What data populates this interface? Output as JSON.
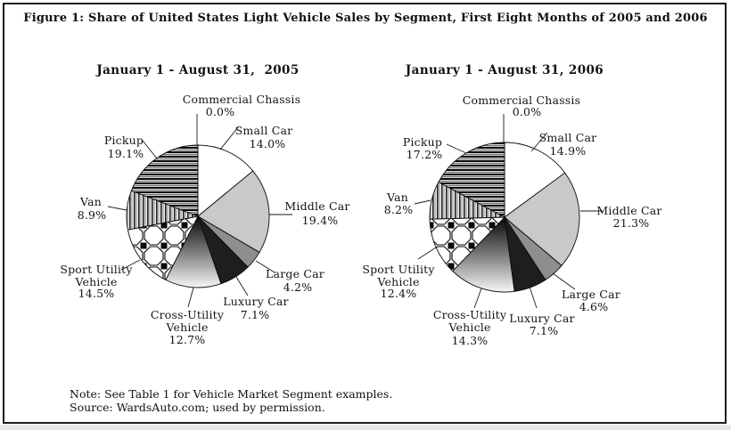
{
  "figure": {
    "title": "Figure 1: Share of United States Light Vehicle Sales by Segment, First Eight Months of 2005 and 2006",
    "note_line1": "Note: See Table 1 for Vehicle Market Segment examples.",
    "note_line2": "Source: WardsAuto.com; used by permission."
  },
  "colors": {
    "frame_border": "#1c1c1c",
    "slice_white": "#ffffff",
    "slice_light_gray": "#c9c9c9",
    "slice_medium_gray": "#8e8e8e",
    "slice_black": "#1e1e1e",
    "page_strip": "#e7e7e7"
  },
  "chart_data": [
    {
      "type": "pie",
      "title": "January 1 - August 31,  2005",
      "value_unit": "percent",
      "start_angle_deg": 0,
      "direction": "clockwise",
      "segments": [
        {
          "label": "Commercial Chassis",
          "value": 0.0,
          "fill": "none"
        },
        {
          "label": "Small Car",
          "value": 14.0,
          "fill": "white"
        },
        {
          "label": "Middle Car",
          "value": 19.4,
          "fill": "light-gray"
        },
        {
          "label": "Large Car",
          "value": 4.2,
          "fill": "medium-gray"
        },
        {
          "label": "Luxury Car",
          "value": 7.1,
          "fill": "black"
        },
        {
          "label": "Cross-Utility Vehicle",
          "value": 12.7,
          "fill": "gradient"
        },
        {
          "label": "Sport Utility Vehicle",
          "value": 14.5,
          "fill": "octagon-pattern"
        },
        {
          "label": "Van",
          "value": 8.9,
          "fill": "vertical-stripes"
        },
        {
          "label": "Pickup",
          "value": 19.1,
          "fill": "horizontal-stripes"
        }
      ]
    },
    {
      "type": "pie",
      "title": "January 1 - August 31, 2006",
      "value_unit": "percent",
      "start_angle_deg": 0,
      "direction": "clockwise",
      "segments": [
        {
          "label": "Commercial Chassis",
          "value": 0.0,
          "fill": "none"
        },
        {
          "label": "Small Car",
          "value": 14.9,
          "fill": "white"
        },
        {
          "label": "Middle Car",
          "value": 21.3,
          "fill": "light-gray"
        },
        {
          "label": "Large Car",
          "value": 4.6,
          "fill": "medium-gray"
        },
        {
          "label": "Luxury Car",
          "value": 7.1,
          "fill": "black"
        },
        {
          "label": "Cross-Utility Vehicle",
          "value": 14.3,
          "fill": "gradient"
        },
        {
          "label": "Sport Utility Vehicle",
          "value": 12.4,
          "fill": "octagon-pattern"
        },
        {
          "label": "Van",
          "value": 8.2,
          "fill": "vertical-stripes"
        },
        {
          "label": "Pickup",
          "value": 17.2,
          "fill": "horizontal-stripes"
        }
      ]
    }
  ]
}
